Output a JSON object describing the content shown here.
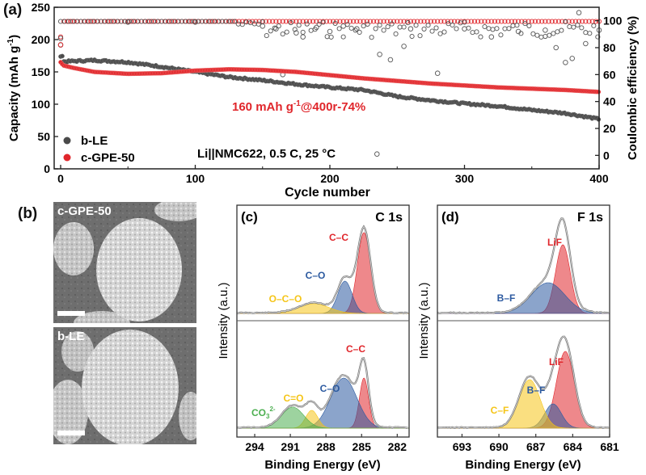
{
  "chart_data": [
    {
      "panel": "(a)",
      "type": "scatter",
      "xlabel": "Cycle number",
      "ylabel": "Capacity (mAh g-1)",
      "ylabel_right": "Coulombic efficiency (%)",
      "xlim": [
        0,
        400
      ],
      "ylim": [
        0,
        250
      ],
      "ylim_right": [
        -10,
        110
      ],
      "xticks": [
        "0",
        "100",
        "200",
        "300",
        "400"
      ],
      "yticks": [
        "0",
        "50",
        "100",
        "150",
        "200",
        "250"
      ],
      "yticks_right": [
        "0",
        "20",
        "40",
        "60",
        "80",
        "100"
      ],
      "annotation": "160 mAh g-1@400r-74%",
      "annotation_sup": "-1",
      "condition": "Li||NMC622, 0.5 C, 25 °C",
      "legend": [
        {
          "name": "b-LE",
          "color": "#4a4a4a"
        },
        {
          "name": "c-GPE-50",
          "color": "#e0262b"
        }
      ],
      "legend_position": "bottom-left",
      "series": [
        {
          "name": "b-LE capacity",
          "axis": "left",
          "marker": "filled",
          "x": [
            0,
            1,
            2,
            25,
            50,
            75,
            100,
            125,
            150,
            175,
            200,
            225,
            250,
            275,
            300,
            325,
            350,
            375,
            400
          ],
          "y": [
            175,
            177,
            166,
            168,
            165,
            158,
            150,
            142,
            137,
            131,
            126,
            122,
            112,
            106,
            101,
            97,
            91,
            86,
            77
          ]
        },
        {
          "name": "c-GPE-50 capacity",
          "axis": "left",
          "marker": "filled",
          "x": [
            0,
            2,
            10,
            25,
            50,
            75,
            100,
            125,
            150,
            175,
            200,
            225,
            250,
            275,
            300,
            325,
            350,
            375,
            400
          ],
          "y": [
            165,
            160,
            156,
            150,
            147,
            148,
            152,
            154,
            153,
            150,
            145,
            140,
            136,
            132,
            129,
            126,
            124,
            122,
            119
          ]
        },
        {
          "name": "b-LE CE",
          "axis": "right",
          "marker": "open",
          "x": [
            0,
            50,
            100,
            150,
            160,
            165,
            175,
            180,
            190,
            200,
            210,
            220,
            235,
            237,
            245,
            255,
            260,
            280,
            300,
            320,
            340,
            360,
            368,
            375,
            380,
            385,
            390,
            400
          ],
          "y": [
            82,
            99,
            99,
            96,
            94,
            60,
            91,
            88,
            95,
            92,
            96,
            94,
            1,
            75,
            71,
            81,
            94,
            61,
            94,
            88,
            92,
            93,
            80,
            69,
            72,
            106,
            83,
            93
          ]
        },
        {
          "name": "c-GPE-50 CE",
          "axis": "right",
          "marker": "open",
          "x": [
            0,
            2,
            400
          ],
          "y": [
            88,
            99.5,
            99.5
          ]
        }
      ]
    },
    {
      "panel": "(b)",
      "type": "image",
      "labels": [
        "c-GPE-50",
        "b-LE"
      ]
    },
    {
      "panel": "(c)",
      "type": "line",
      "title": "C 1s",
      "xlabel": "Binding Energy (eV)",
      "ylabel": "Intensity (a.u.)",
      "xlim": [
        295.5,
        281
      ],
      "xticks": [
        "294",
        "291",
        "288",
        "285",
        "282"
      ],
      "top": {
        "sample": "c-GPE-50",
        "peaks": [
          {
            "label": "C–C",
            "center": 284.8,
            "height": 1.0,
            "fwhm": 1.3,
            "color": "#e0262b"
          },
          {
            "label": "C–O",
            "center": 286.4,
            "height": 0.4,
            "fwhm": 1.4,
            "color": "#2c5aa0"
          },
          {
            "label": "O–C–O",
            "center": 289.0,
            "height": 0.12,
            "fwhm": 3.0,
            "color": "#f5c518"
          }
        ]
      },
      "bottom": {
        "sample": "b-LE",
        "peaks": [
          {
            "label": "C–C",
            "center": 284.8,
            "height": 0.62,
            "fwhm": 0.9,
            "color": "#e0262b"
          },
          {
            "label": "C–O",
            "center": 286.5,
            "height": 0.62,
            "fwhm": 2.6,
            "color": "#2c5aa0"
          },
          {
            "label": "C=O",
            "center": 289.2,
            "height": 0.22,
            "fwhm": 1.2,
            "color": "#f5c518"
          },
          {
            "label": "CO32-",
            "center": 290.8,
            "height": 0.26,
            "fwhm": 2.2,
            "color": "#4caf50"
          }
        ]
      }
    },
    {
      "panel": "(d)",
      "type": "line",
      "title": "F 1s",
      "xlabel": "Binding Energy (eV)",
      "ylabel": "Intensity (a.u.)",
      "xlim": [
        695,
        681
      ],
      "xticks": [
        "693",
        "690",
        "687",
        "684",
        "681"
      ],
      "top": {
        "sample": "c-GPE-50",
        "peaks": [
          {
            "label": "LiF",
            "center": 684.8,
            "height": 0.85,
            "fwhm": 1.4,
            "color": "#e0262b"
          },
          {
            "label": "B–F",
            "center": 686.0,
            "height": 0.38,
            "fwhm": 3.2,
            "color": "#2c5aa0"
          }
        ]
      },
      "bottom": {
        "sample": "b-LE",
        "peaks": [
          {
            "label": "LiF",
            "center": 684.6,
            "height": 0.95,
            "fwhm": 1.7,
            "color": "#e0262b"
          },
          {
            "label": "B–F",
            "center": 685.6,
            "height": 0.3,
            "fwhm": 1.6,
            "color": "#2c5aa0"
          },
          {
            "label": "C–F",
            "center": 687.5,
            "height": 0.6,
            "fwhm": 2.0,
            "color": "#f5c518"
          }
        ]
      }
    }
  ],
  "labels": {
    "a": "(a)",
    "b": "(b)",
    "c": "(c)",
    "d": "(d)",
    "yl_cap": "Capacity (mAh g",
    "yl_cap_sup": "-1",
    "yl_cap_end": ")",
    "ann_main": "160 mAh g",
    "ann_sup": "-1",
    "ann_end": "@400r-74%",
    "co3_main": "CO",
    "co3_sub": "3",
    "co3_sup": "2-"
  }
}
